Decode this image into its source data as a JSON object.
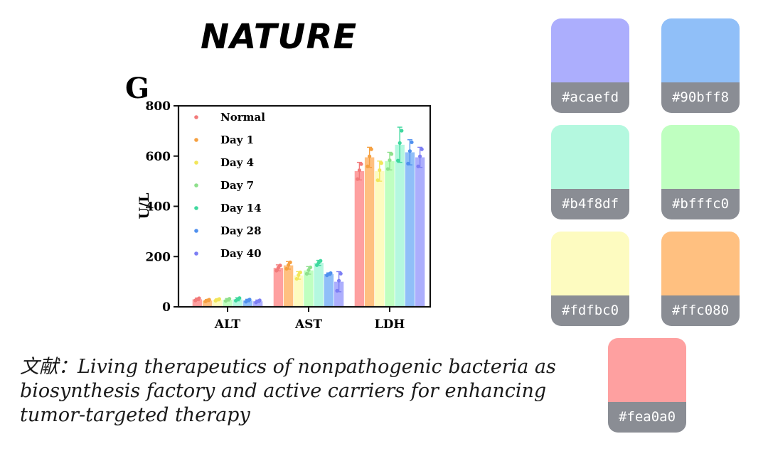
{
  "brand": "NATURE",
  "panel_label": "G",
  "citation": {
    "line1": "文献：Living therapeutics of nonpathogenic bacteria as",
    "line2": "biosynthesis factory and active carriers for enhancing",
    "line3": "tumor-targeted therapy"
  },
  "swatches": [
    {
      "hex": "#acaefd",
      "label": "#acaefd"
    },
    {
      "hex": "#90bff8",
      "label": "#90bff8"
    },
    {
      "hex": "#b4f8df",
      "label": "#b4f8df"
    },
    {
      "hex": "#bfffc0",
      "label": "#bfffc0"
    },
    {
      "hex": "#fdfbc0",
      "label": "#fdfbc0"
    },
    {
      "hex": "#ffc080",
      "label": "#ffc080"
    },
    {
      "hex": "#fea0a0",
      "label": "#fea0a0"
    }
  ],
  "chart_data": {
    "type": "bar",
    "ylabel": "U/L",
    "ylim": [
      0,
      800
    ],
    "yticks": [
      0,
      200,
      400,
      600,
      800
    ],
    "categories": [
      "ALT",
      "AST",
      "LDH"
    ],
    "legend_position": "top-left",
    "grid": false,
    "series": [
      {
        "name": "Normal",
        "bar_color": "#fea0a0",
        "dot_color": "#f27a7a",
        "values": [
          30,
          155,
          540
        ],
        "errors": [
          5,
          12,
          35
        ]
      },
      {
        "name": "Day 1",
        "bar_color": "#ffc080",
        "dot_color": "#f5a040",
        "values": [
          25,
          165,
          595
        ],
        "errors": [
          4,
          15,
          40
        ]
      },
      {
        "name": "Day 4",
        "bar_color": "#fdfbc0",
        "dot_color": "#f2e65a",
        "values": [
          28,
          125,
          540
        ],
        "errors": [
          4,
          15,
          40
        ]
      },
      {
        "name": "Day 7",
        "bar_color": "#bfffc0",
        "dot_color": "#8ee08c",
        "values": [
          28,
          145,
          580
        ],
        "errors": [
          5,
          15,
          35
        ]
      },
      {
        "name": "Day 14",
        "bar_color": "#b4f8df",
        "dot_color": "#3fd89e",
        "values": [
          30,
          175,
          645
        ],
        "errors": [
          6,
          10,
          70
        ]
      },
      {
        "name": "Day 28",
        "bar_color": "#90bff8",
        "dot_color": "#4f90ee",
        "values": [
          25,
          130,
          615
        ],
        "errors": [
          5,
          5,
          50
        ]
      },
      {
        "name": "Day 40",
        "bar_color": "#acaefd",
        "dot_color": "#7c7ef4",
        "values": [
          22,
          100,
          595
        ],
        "errors": [
          5,
          40,
          40
        ]
      }
    ]
  }
}
